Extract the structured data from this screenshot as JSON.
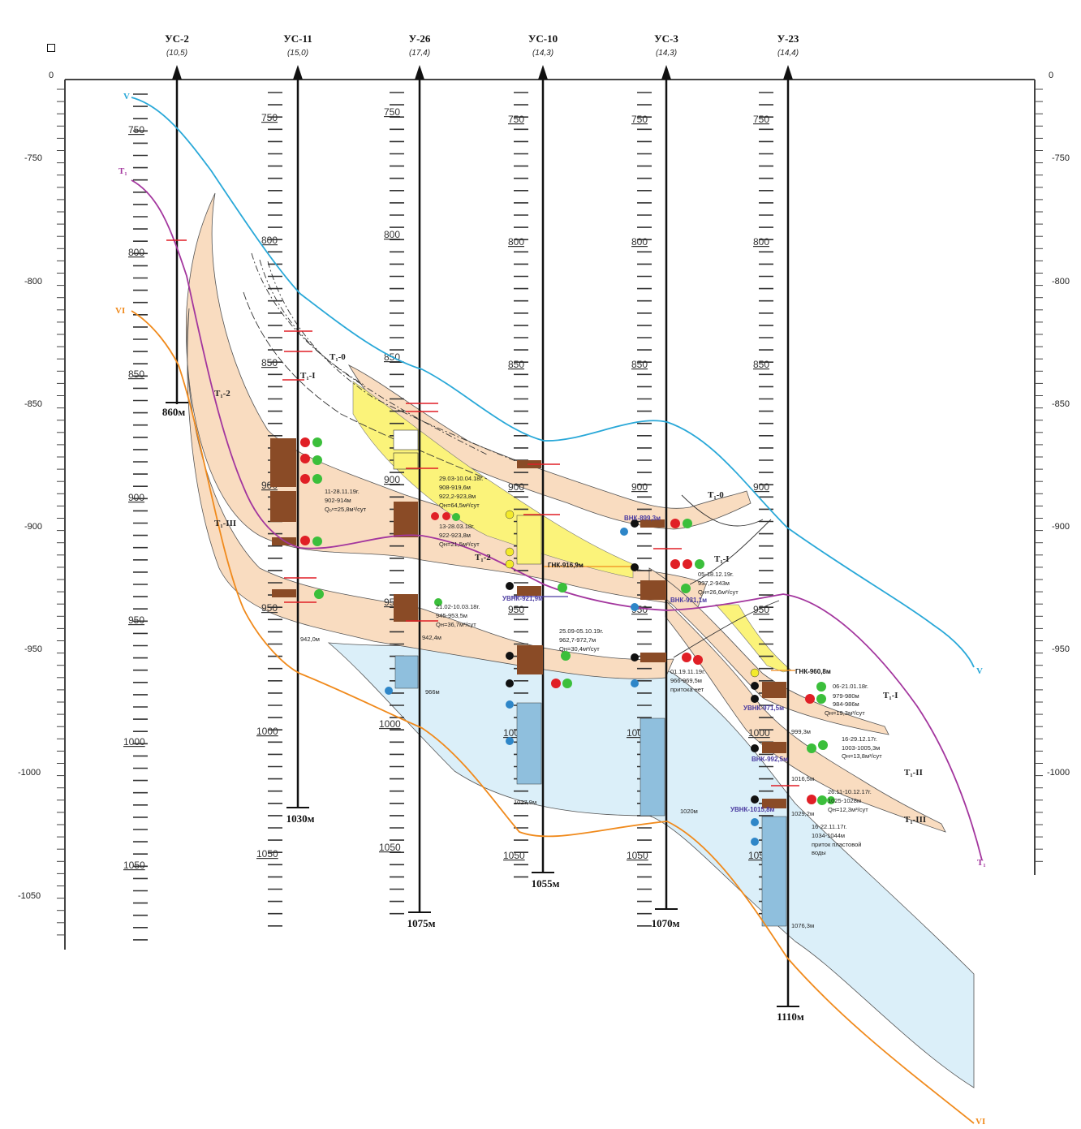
{
  "corner_mark": "□",
  "depth_axis": {
    "left_zero": "0",
    "right_zero": "0",
    "labels": [
      "-750",
      "-800",
      "-850",
      "-900",
      "-950",
      "-1000",
      "-1050"
    ]
  },
  "wells": [
    {
      "name": "УС-2",
      "alt": "(10,5)",
      "td": "860м",
      "ticks": [
        "750",
        "800",
        "850",
        "900",
        "950",
        "1000",
        "1050"
      ]
    },
    {
      "name": "УС-11",
      "alt": "(15,0)",
      "td": "1030м",
      "ticks": [
        "750",
        "800",
        "850",
        "900",
        "950",
        "1000",
        "1050"
      ]
    },
    {
      "name": "У-26",
      "alt": "(17,4)",
      "td": "1075м",
      "ticks": [
        "750",
        "800",
        "850",
        "900",
        "950",
        "1000",
        "1050"
      ]
    },
    {
      "name": "УС-10",
      "alt": "(14,3)",
      "td": "1055м",
      "ticks": [
        "750",
        "800",
        "850",
        "900",
        "950",
        "1000",
        "1050"
      ]
    },
    {
      "name": "УС-3",
      "alt": "(14,3)",
      "td": "1070м",
      "ticks": [
        "750",
        "800",
        "850",
        "900",
        "950",
        "1000",
        "1050"
      ]
    },
    {
      "name": "У-23",
      "alt": "(14,4)",
      "td": "1110м",
      "ticks": [
        "750",
        "800",
        "850",
        "900",
        "950",
        "1000",
        "1050"
      ]
    }
  ],
  "horizons": [
    {
      "label": "V",
      "color": "#29a8d8"
    },
    {
      "label": "T₁",
      "color": "#a3369e"
    },
    {
      "label": "VI",
      "color": "#f08a1c"
    }
  ],
  "layers": [
    "Т₁-0",
    "Т₁-I",
    "Т₁-2",
    "Т₁-III",
    "Т₁-II"
  ],
  "contacts": {
    "gnk_us10": "ГНК-916,9м",
    "uvnk_us10": "УВНК-921,9м",
    "vnk_us3_a": "ВНК-899,3м",
    "vnk_us3_b": "ВНК-931,1м",
    "gnk_u23": "ГНК-960,8м",
    "uvnk_u23_a": "УВНК-971,5м",
    "vnk_u23": "ВНК-992,5м",
    "uvnk_u23_b": "УВНК-1015,8м"
  },
  "annotations": {
    "us11_test": [
      "11-28.11.19г.",
      "902-914м",
      "Qₒⁿ=25,8м³/сут"
    ],
    "u26_test1": [
      "29.03-10.04.18г.",
      "908-919,6м",
      "922,2-923,8м",
      "Qн=64,5м³/сут"
    ],
    "u26_test2": [
      "13-28.03.18г.",
      "922-923,8м",
      "Qн=21,5м³/сут"
    ],
    "u26_test3": [
      "21.02-10.03.18г.",
      "945-953,5м",
      "Qн=36,7м³/сут"
    ],
    "us10_test": [
      "25.09-05.10.19г.",
      "962,7-972,7м",
      "Qн=30,4м³/сут"
    ],
    "us3_test1": [
      "05-18.12.19г.",
      "937,2-943м",
      "Qн=26,6м³/сут"
    ],
    "us3_test2": [
      "01.19.11.19г.",
      "966-969,5м",
      "притока нет"
    ],
    "u23_test1": [
      "06-21.01.18г.",
      "979-980м",
      "984-986м",
      "Qн=19,3м³/сут"
    ],
    "u23_test2": [
      "16-29.12.17г.",
      "1003-1005,3м",
      "Qн=13,8м³/сут"
    ],
    "u23_test3": [
      "26.11-10.12.17г.",
      "1025-1028м",
      "Qн=12,3м³/сут"
    ],
    "u23_test4": [
      "16-22.11.17г.",
      "1034-1044м",
      "приток пластовой",
      "воды"
    ],
    "depth_us11": "942,0м",
    "depth_u26_a": "942,4м",
    "depth_u26_b": "966м",
    "depth_us10": "1027,9м",
    "depth_us3": "1020м",
    "depth_u23_a": "999,3м",
    "depth_u23_b": "1016,5м",
    "depth_u23_c": "1029,2м",
    "depth_u23_d": "1076,3м"
  },
  "colors": {
    "reservoir": "#f9dcc0",
    "gas": "#fbf37a",
    "water": "#dbeff9",
    "core": "#8a4b26",
    "core_blue": "#8fbfdd",
    "oil_dot": "#e01f26",
    "green_dot": "#3bbf3b",
    "black_dot": "#111111",
    "blue_dot": "#2e86c8",
    "yellow_dot": "#f3ea2a"
  }
}
